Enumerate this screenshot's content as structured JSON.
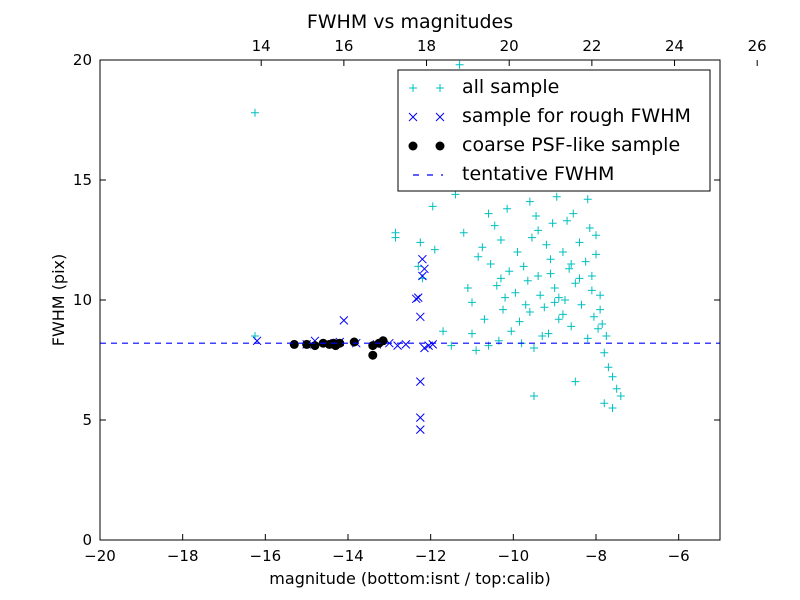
{
  "chart_data": {
    "type": "scatter",
    "title": "FWHM vs magnitudes",
    "xlabel": "magnitude (bottom:isnt / top:calib)",
    "ylabel": "FWHM (pix)",
    "xlim": [
      -20,
      -5
    ],
    "ylim": [
      0,
      20
    ],
    "x_ticks": [
      "−20",
      "−18",
      "−16",
      "−14",
      "−12",
      "−10",
      "−8",
      "−6"
    ],
    "y_ticks": [
      "0",
      "5",
      "10",
      "15",
      "20"
    ],
    "top_axis": {
      "offset": 30.1,
      "ticks": [
        "14",
        "16",
        "18",
        "20",
        "22",
        "24",
        "26"
      ]
    },
    "grid": false,
    "legend_position": "top-right",
    "colors": {
      "all": "#00bfbf",
      "rough": "#0000ff",
      "coarse": "#000000",
      "fwhm_line": "#0000ff"
    },
    "tentative_fwhm": 8.2,
    "series": [
      {
        "name": "all sample",
        "marker": "plus",
        "color": "#00bfbf",
        "points": [
          [
            -16.25,
            17.8
          ],
          [
            -16.25,
            8.5
          ],
          [
            -12.85,
            12.8
          ],
          [
            -12.85,
            12.6
          ],
          [
            -12.25,
            12.4
          ],
          [
            -12.2,
            10.9
          ],
          [
            -12.3,
            11.4
          ],
          [
            -12.0,
            14.9
          ],
          [
            -11.95,
            13.9
          ],
          [
            -11.9,
            12.1
          ],
          [
            -11.8,
            16.4
          ],
          [
            -11.7,
            8.7
          ],
          [
            -11.5,
            8.1
          ],
          [
            -11.4,
            14.4
          ],
          [
            -11.3,
            19.8
          ],
          [
            -11.25,
            15.4
          ],
          [
            -11.2,
            12.8
          ],
          [
            -11.1,
            10.5
          ],
          [
            -11.0,
            8.6
          ],
          [
            -10.9,
            7.9
          ],
          [
            -10.85,
            11.8
          ],
          [
            -10.8,
            15.0
          ],
          [
            -10.75,
            12.2
          ],
          [
            -10.7,
            9.2
          ],
          [
            -10.6,
            8.1
          ],
          [
            -10.55,
            11.5
          ],
          [
            -10.5,
            16.2
          ],
          [
            -10.45,
            13.1
          ],
          [
            -10.4,
            10.6
          ],
          [
            -10.35,
            8.3
          ],
          [
            -10.3,
            12.5
          ],
          [
            -10.25,
            9.6
          ],
          [
            -10.2,
            10.1
          ],
          [
            -10.15,
            13.8
          ],
          [
            -10.1,
            11.2
          ],
          [
            -10.05,
            8.7
          ],
          [
            -10.0,
            15.6
          ],
          [
            -9.95,
            10.3
          ],
          [
            -9.9,
            12.0
          ],
          [
            -9.85,
            9.1
          ],
          [
            -9.8,
            8.2
          ],
          [
            -9.75,
            11.4
          ],
          [
            -9.7,
            14.7
          ],
          [
            -9.65,
            10.8
          ],
          [
            -9.6,
            9.5
          ],
          [
            -9.55,
            12.6
          ],
          [
            -9.5,
            8.0
          ],
          [
            -9.45,
            13.5
          ],
          [
            -9.4,
            11.0
          ],
          [
            -9.35,
            10.2
          ],
          [
            -9.3,
            15.2
          ],
          [
            -9.25,
            9.7
          ],
          [
            -9.2,
            12.3
          ],
          [
            -9.15,
            8.6
          ],
          [
            -9.1,
            11.7
          ],
          [
            -9.05,
            13.2
          ],
          [
            -9.0,
            10.5
          ],
          [
            -8.95,
            14.3
          ],
          [
            -8.9,
            9.2
          ],
          [
            -8.85,
            16.8
          ],
          [
            -8.8,
            12.0
          ],
          [
            -8.75,
            10.0
          ],
          [
            -8.7,
            15.7
          ],
          [
            -8.65,
            11.3
          ],
          [
            -8.6,
            8.9
          ],
          [
            -8.55,
            13.6
          ],
          [
            -8.5,
            10.7
          ],
          [
            -8.45,
            17.4
          ],
          [
            -8.4,
            12.4
          ],
          [
            -8.35,
            9.8
          ],
          [
            -8.3,
            14.8
          ],
          [
            -8.25,
            11.6
          ],
          [
            -8.2,
            8.4
          ],
          [
            -8.15,
            13.0
          ],
          [
            -8.1,
            10.4
          ],
          [
            -8.05,
            9.3
          ],
          [
            -8.0,
            11.9
          ],
          [
            -7.95,
            8.8
          ],
          [
            -7.9,
            10.2
          ],
          [
            -7.85,
            9.0
          ],
          [
            -7.8,
            7.8
          ],
          [
            -7.75,
            8.5
          ],
          [
            -7.7,
            7.2
          ],
          [
            -7.6,
            6.8
          ],
          [
            -7.5,
            6.3
          ],
          [
            -7.4,
            6.0
          ],
          [
            -7.6,
            5.5
          ],
          [
            -7.8,
            5.7
          ],
          [
            -8.5,
            6.6
          ],
          [
            -9.5,
            6.0
          ],
          [
            -8.9,
            17.9
          ],
          [
            -8.6,
            18.5
          ],
          [
            -8.3,
            19.2
          ],
          [
            -9.2,
            16.6
          ],
          [
            -9.6,
            14.1
          ],
          [
            -9.4,
            12.9
          ],
          [
            -9.1,
            11.1
          ],
          [
            -8.8,
            9.4
          ],
          [
            -8.4,
            10.9
          ],
          [
            -8.0,
            12.7
          ],
          [
            -8.2,
            14.2
          ],
          [
            -8.6,
            11.5
          ],
          [
            -9.0,
            9.9
          ],
          [
            -9.3,
            8.5
          ],
          [
            -8.7,
            13.3
          ],
          [
            -8.5,
            15.5
          ],
          [
            -8.3,
            16.0
          ],
          [
            -8.1,
            11.0
          ],
          [
            -7.9,
            9.6
          ],
          [
            -8.9,
            10.1
          ],
          [
            -9.7,
            9.8
          ],
          [
            -10.3,
            10.9
          ],
          [
            -10.6,
            13.6
          ],
          [
            -11.0,
            9.9
          ]
        ]
      },
      {
        "name": "sample for rough FWHM",
        "marker": "x",
        "color": "#0000ff",
        "points": [
          [
            -16.2,
            8.3
          ],
          [
            -15.0,
            8.15
          ],
          [
            -14.8,
            8.3
          ],
          [
            -14.5,
            8.2
          ],
          [
            -14.2,
            8.25
          ],
          [
            -14.1,
            9.15
          ],
          [
            -13.8,
            8.2
          ],
          [
            -13.3,
            8.15
          ],
          [
            -13.0,
            8.2
          ],
          [
            -12.8,
            8.1
          ],
          [
            -12.6,
            8.15
          ],
          [
            -12.35,
            10.05
          ],
          [
            -12.3,
            10.1
          ],
          [
            -12.25,
            9.3
          ],
          [
            -12.2,
            11.7
          ],
          [
            -12.15,
            11.3
          ],
          [
            -12.2,
            11.0
          ],
          [
            -12.25,
            6.6
          ],
          [
            -12.25,
            5.1
          ],
          [
            -12.25,
            4.6
          ],
          [
            -12.15,
            8.0
          ],
          [
            -12.05,
            8.1
          ],
          [
            -11.95,
            8.15
          ]
        ]
      },
      {
        "name": "coarse PSF-like sample",
        "marker": "dot",
        "color": "#000000",
        "points": [
          [
            -15.3,
            8.15
          ],
          [
            -15.0,
            8.15
          ],
          [
            -14.8,
            8.1
          ],
          [
            -14.6,
            8.2
          ],
          [
            -14.45,
            8.15
          ],
          [
            -14.35,
            8.2
          ],
          [
            -14.3,
            8.1
          ],
          [
            -14.2,
            8.2
          ],
          [
            -13.85,
            8.25
          ],
          [
            -13.4,
            8.1
          ],
          [
            -13.4,
            7.7
          ],
          [
            -13.25,
            8.2
          ],
          [
            -13.15,
            8.3
          ]
        ]
      },
      {
        "name": "tentative FWHM",
        "marker": "dashed-line",
        "color": "#0000ff"
      }
    ]
  }
}
